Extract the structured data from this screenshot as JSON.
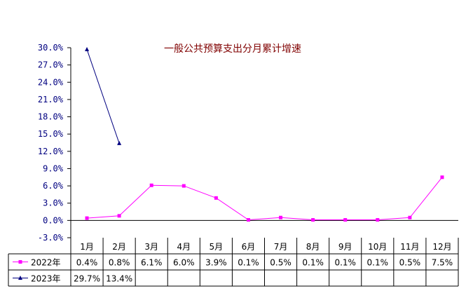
{
  "chart_data": {
    "type": "line",
    "title": "一般公共预算支出分月累计增速",
    "xlabel": "",
    "ylabel": "",
    "categories": [
      "1月",
      "2月",
      "3月",
      "4月",
      "5月",
      "6月",
      "7月",
      "8月",
      "9月",
      "10月",
      "11月",
      "12月"
    ],
    "ylim": [
      -3.0,
      30.0
    ],
    "yticks": [
      30.0,
      27.0,
      24.0,
      21.0,
      18.0,
      15.0,
      12.0,
      9.0,
      6.0,
      3.0,
      0.0,
      -3.0
    ],
    "ytick_labels": [
      "30.0%",
      "27.0%",
      "24.0%",
      "21.0%",
      "18.0%",
      "15.0%",
      "12.0%",
      "9.0%",
      "6.0%",
      "3.0%",
      "0.0%",
      "-3.0%"
    ],
    "grid": false,
    "legend": "data-table",
    "series": [
      {
        "name": "2022年",
        "color": "#ff00ff",
        "marker": "square",
        "values": [
          0.4,
          0.8,
          6.1,
          6.0,
          3.9,
          0.1,
          0.5,
          0.1,
          0.1,
          0.1,
          0.5,
          7.5
        ],
        "labels": [
          "0.4%",
          "0.8%",
          "6.1%",
          "6.0%",
          "3.9%",
          "0.1%",
          "0.5%",
          "0.1%",
          "0.1%",
          "0.1%",
          "0.5%",
          "7.5%"
        ]
      },
      {
        "name": "2023年",
        "color": "#000080",
        "marker": "triangle",
        "values": [
          29.7,
          13.4,
          null,
          null,
          null,
          null,
          null,
          null,
          null,
          null,
          null,
          null
        ],
        "labels": [
          "29.7%",
          "13.4%",
          "",
          "",
          "",
          "",
          "",
          "",
          "",
          "",
          "",
          ""
        ]
      }
    ]
  }
}
